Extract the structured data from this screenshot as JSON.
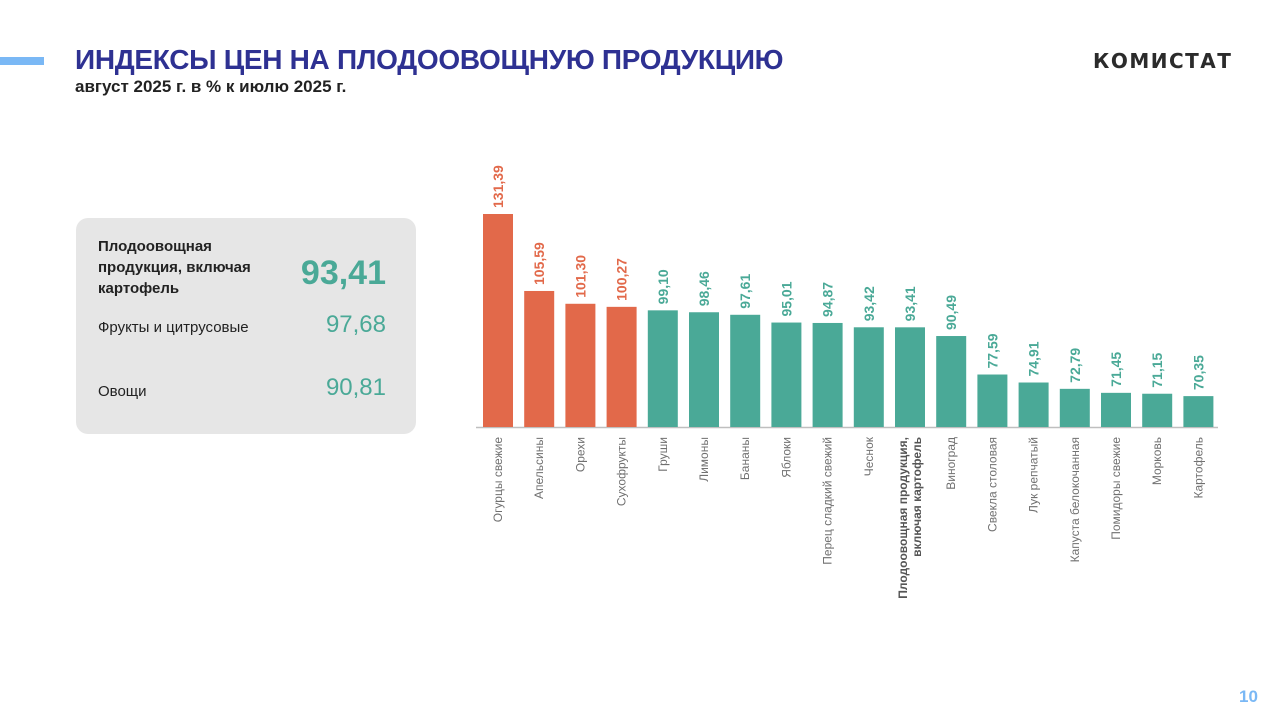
{
  "header": {
    "title": "ИНДЕКСЫ ЦЕН НА ПЛОДООВОЩНУЮ ПРОДУКЦИЮ",
    "subtitle": "август 2025 г. в % к июлю 2025 г.",
    "logo": "КОМИСТАТ"
  },
  "summary": {
    "rows": [
      {
        "label": "Плодоовощная продукция, включая картофель",
        "value": "93,41"
      },
      {
        "label": "Фрукты и цитрусовые",
        "value": "97,68"
      },
      {
        "label": "Овощи",
        "value": "90,81"
      }
    ]
  },
  "colors": {
    "increase": "#e2694a",
    "decrease": "#4aa997",
    "title": "#2e3192",
    "accent": "#7ab8f5"
  },
  "chart_data": {
    "type": "bar",
    "title": "",
    "xlabel": "",
    "ylabel": "",
    "ylim": [
      60,
      135
    ],
    "grid": false,
    "categories": [
      "Огурцы свежие",
      "Апельсины",
      "Орехи",
      "Сухофрукты",
      "Груши",
      "Лимоны",
      "Бананы",
      "Яблоки",
      "Перец сладкий свежий",
      "Чеснок",
      "Плодоовощная продукция, включая картофель",
      "Виноград",
      "Свекла столовая",
      "Лук репчатый",
      "Капуста белокочанная",
      "Помидоры свежие",
      "Морковь",
      "Картофель"
    ],
    "values": [
      131.39,
      105.59,
      101.3,
      100.27,
      99.1,
      98.46,
      97.61,
      95.01,
      94.87,
      93.42,
      93.41,
      90.49,
      77.59,
      74.91,
      72.79,
      71.45,
      71.15,
      70.35
    ],
    "value_labels": [
      "131,39",
      "105,59",
      "101,30",
      "100,27",
      "99,10",
      "98,46",
      "97,61",
      "95,01",
      "94,87",
      "93,42",
      "93,41",
      "90,49",
      "77,59",
      "74,91",
      "72,79",
      "71,45",
      "71,15",
      "70,35"
    ],
    "highlight_index": 10
  },
  "footer": {
    "page_number": "10"
  }
}
